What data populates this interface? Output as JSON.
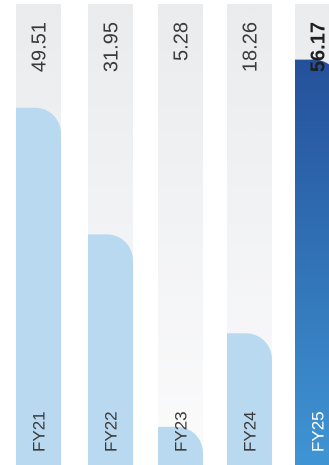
{
  "chart_data": {
    "type": "bar",
    "orientation": "vertical, labels rotated 90° counter-clockwise",
    "categories": [
      "FY21",
      "FY22",
      "FY23",
      "FY24",
      "FY25"
    ],
    "values": [
      49.51,
      31.95,
      5.28,
      18.26,
      56.17
    ],
    "value_labels": [
      "49.51",
      "31.95",
      "5.28",
      "18.26",
      "56.17"
    ],
    "highlight_category": "FY25",
    "ylim": [
      0,
      60
    ],
    "grid": false,
    "colors": {
      "bar": "#b9d9f0",
      "bar_highlight_top": "#24509a",
      "bar_highlight_bottom": "#3f95d4",
      "track_top": "#e9ebed",
      "track_bottom": "#fbfbfc",
      "value_text": "#3a3a3a",
      "category_text": "#3a3a3a",
      "category_text_highlight": "#ffffff"
    }
  }
}
